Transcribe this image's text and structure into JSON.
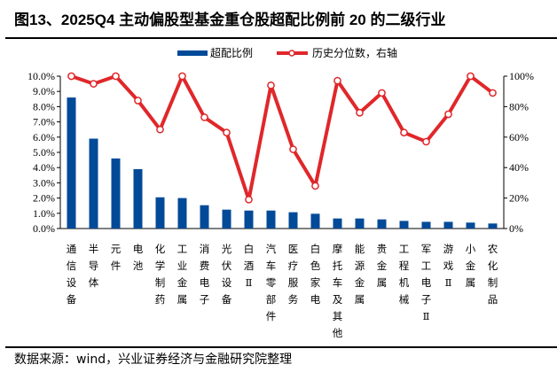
{
  "title": "图13、2025Q4 主动偏股型基金重仓股超配比例前 20 的二级行业",
  "source": "数据来源：wind，兴业证券经济与金融研究院整理",
  "chart_data": {
    "type": "bar+line",
    "title": "图13、2025Q4 主动偏股型基金重仓股超配比例前 20 的二级行业",
    "categories": [
      "通信设备",
      "半导体",
      "元件",
      "电池",
      "化学制药",
      "工业金属",
      "消费电子",
      "光伏设备",
      "白酒Ⅱ",
      "汽车零部件",
      "医疗服务",
      "白色家电",
      "摩托车及其他",
      "能源金属",
      "贵金属",
      "工程机械",
      "军工电子Ⅱ",
      "游戏Ⅱ",
      "小金属",
      "农化制品"
    ],
    "series": [
      {
        "name": "超配比例",
        "type": "bar",
        "axis": "left",
        "color": "#004A98",
        "values": [
          8.6,
          5.9,
          4.6,
          3.9,
          2.05,
          2.0,
          1.53,
          1.24,
          1.18,
          1.18,
          1.07,
          0.97,
          0.66,
          0.66,
          0.6,
          0.5,
          0.44,
          0.44,
          0.39,
          0.33
        ]
      },
      {
        "name": "历史分位数，右轴",
        "type": "line",
        "axis": "right",
        "color": "#E0272A",
        "values": [
          100,
          95,
          100,
          84,
          65,
          100,
          73,
          63,
          19,
          94,
          52,
          28,
          97,
          76,
          89,
          63,
          57,
          75,
          100,
          89
        ]
      }
    ],
    "left_axis": {
      "min": 0,
      "max": 10,
      "step": 1,
      "format": "0.0%",
      "ticks": [
        "0.0%",
        "1.0%",
        "2.0%",
        "3.0%",
        "4.0%",
        "5.0%",
        "6.0%",
        "7.0%",
        "8.0%",
        "9.0%",
        "10.0%"
      ]
    },
    "right_axis": {
      "min": 0,
      "max": 100,
      "step": 20,
      "format": "0%",
      "ticks": [
        "0%",
        "20%",
        "40%",
        "60%",
        "80%",
        "100%"
      ]
    },
    "legend": {
      "placement": "top",
      "items": [
        "超配比例",
        "历史分位数，右轴"
      ]
    },
    "grid": false
  }
}
